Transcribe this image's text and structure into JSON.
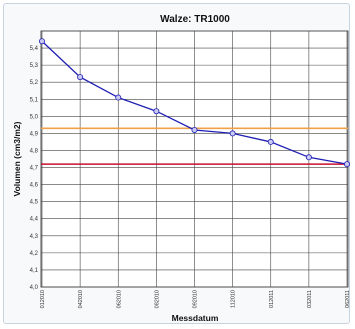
{
  "chart_data": {
    "type": "line",
    "title": "Walze: TR1000",
    "xlabel": "Messdatum",
    "ylabel": "Volumen (cm3/m2)",
    "ylim": [
      4.0,
      5.5
    ],
    "yticks": [
      "4,0",
      "4,1",
      "4,2",
      "4,3",
      "4,4",
      "4,5",
      "4,6",
      "4,7",
      "4,8",
      "4,9",
      "5,0",
      "5,1",
      "5,2",
      "5,3",
      "5,4"
    ],
    "xticks": [
      "012010",
      "042010",
      "062010",
      "082010",
      "092010",
      "112010",
      "012011",
      "032011",
      "062011"
    ],
    "grid": true,
    "series": [
      {
        "color": "#1f1fb4",
        "x": [
          "012010",
          "042010",
          "062010",
          "082010",
          "092010",
          "112010",
          "012011",
          "032011",
          "062011"
        ],
        "values": [
          5.44,
          5.23,
          5.11,
          5.03,
          4.92,
          4.9,
          4.85,
          4.76,
          4.72
        ]
      }
    ],
    "reference_lines": [
      {
        "value": 4.93,
        "color": "#f0a04b"
      },
      {
        "value": 4.72,
        "color": "#c8102e"
      }
    ]
  }
}
